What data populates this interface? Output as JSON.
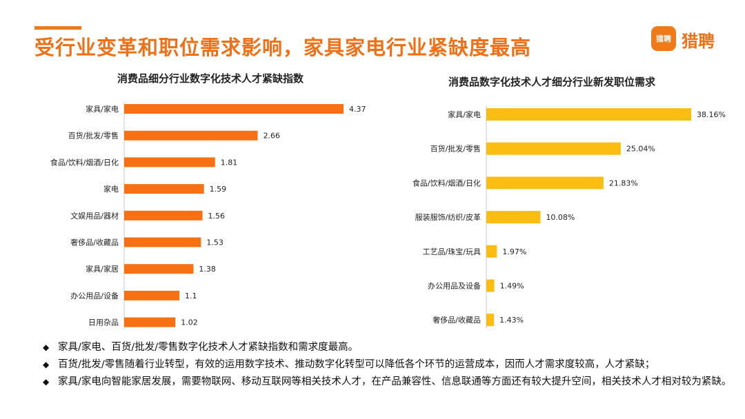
{
  "header": {
    "title": "受行业变革和职位需求影响，家具家电行业紧缺度最高",
    "logo_badge": "猎聘",
    "logo_text": "猎聘",
    "accent_color": "#f07a18"
  },
  "chart_data": [
    {
      "type": "bar",
      "orientation": "horizontal",
      "title": "消费品细分行业数字化技术人才紧缺指数",
      "categories": [
        "家具/家电",
        "百货/批发/零售",
        "食品/饮料/烟酒/日化",
        "家电",
        "文娱用品/器材",
        "奢侈品/收藏品",
        "家具/家居",
        "办公用品/设备",
        "日用杂品"
      ],
      "values": [
        4.37,
        2.66,
        1.81,
        1.59,
        1.56,
        1.53,
        1.38,
        1.1,
        1.02
      ],
      "value_labels": [
        "4.37",
        "2.66",
        "1.81",
        "1.59",
        "1.56",
        "1.53",
        "1.38",
        "1.1",
        "1.02"
      ],
      "xlim": [
        0,
        4.37
      ],
      "color": "#f77013",
      "xlabel": "",
      "ylabel": "",
      "grid": false
    },
    {
      "type": "bar",
      "orientation": "horizontal",
      "title": "消费品数字化技术人才细分行业新发职位需求",
      "categories": [
        "家具/家电",
        "百货/批发/零售",
        "食品/饮料/烟酒/日化",
        "服装服饰/纺织/皮革",
        "工艺品/珠宝/玩具",
        "办公用品及设备",
        "奢侈品/收藏品"
      ],
      "values": [
        38.16,
        25.04,
        21.83,
        10.08,
        1.97,
        1.49,
        1.43
      ],
      "value_labels": [
        "38.16%",
        "25.04%",
        "21.83%",
        "10.08%",
        "1.97%",
        "1.49%",
        "1.43%"
      ],
      "xlim": [
        0,
        38.16
      ],
      "color": "#fcbd12",
      "xlabel": "",
      "ylabel": "",
      "grid": false
    }
  ],
  "bullets": [
    "家具/家电、百货/批发/零售数字化技术人才紧缺指数和需求度最高。",
    "百货/批发/零售随着行业转型，有效的运用数字技术、推动数字化转型可以降低各个环节的运营成本，因而人才需求度较高，人才紧缺；",
    "家具/家电向智能家居发展，需要物联网、移动互联网等相关技术人才，在产品兼容性、信息联通等方面还有较大提升空间，相关技术人才相对较为紧缺。"
  ],
  "bullet_symbol": "◆"
}
